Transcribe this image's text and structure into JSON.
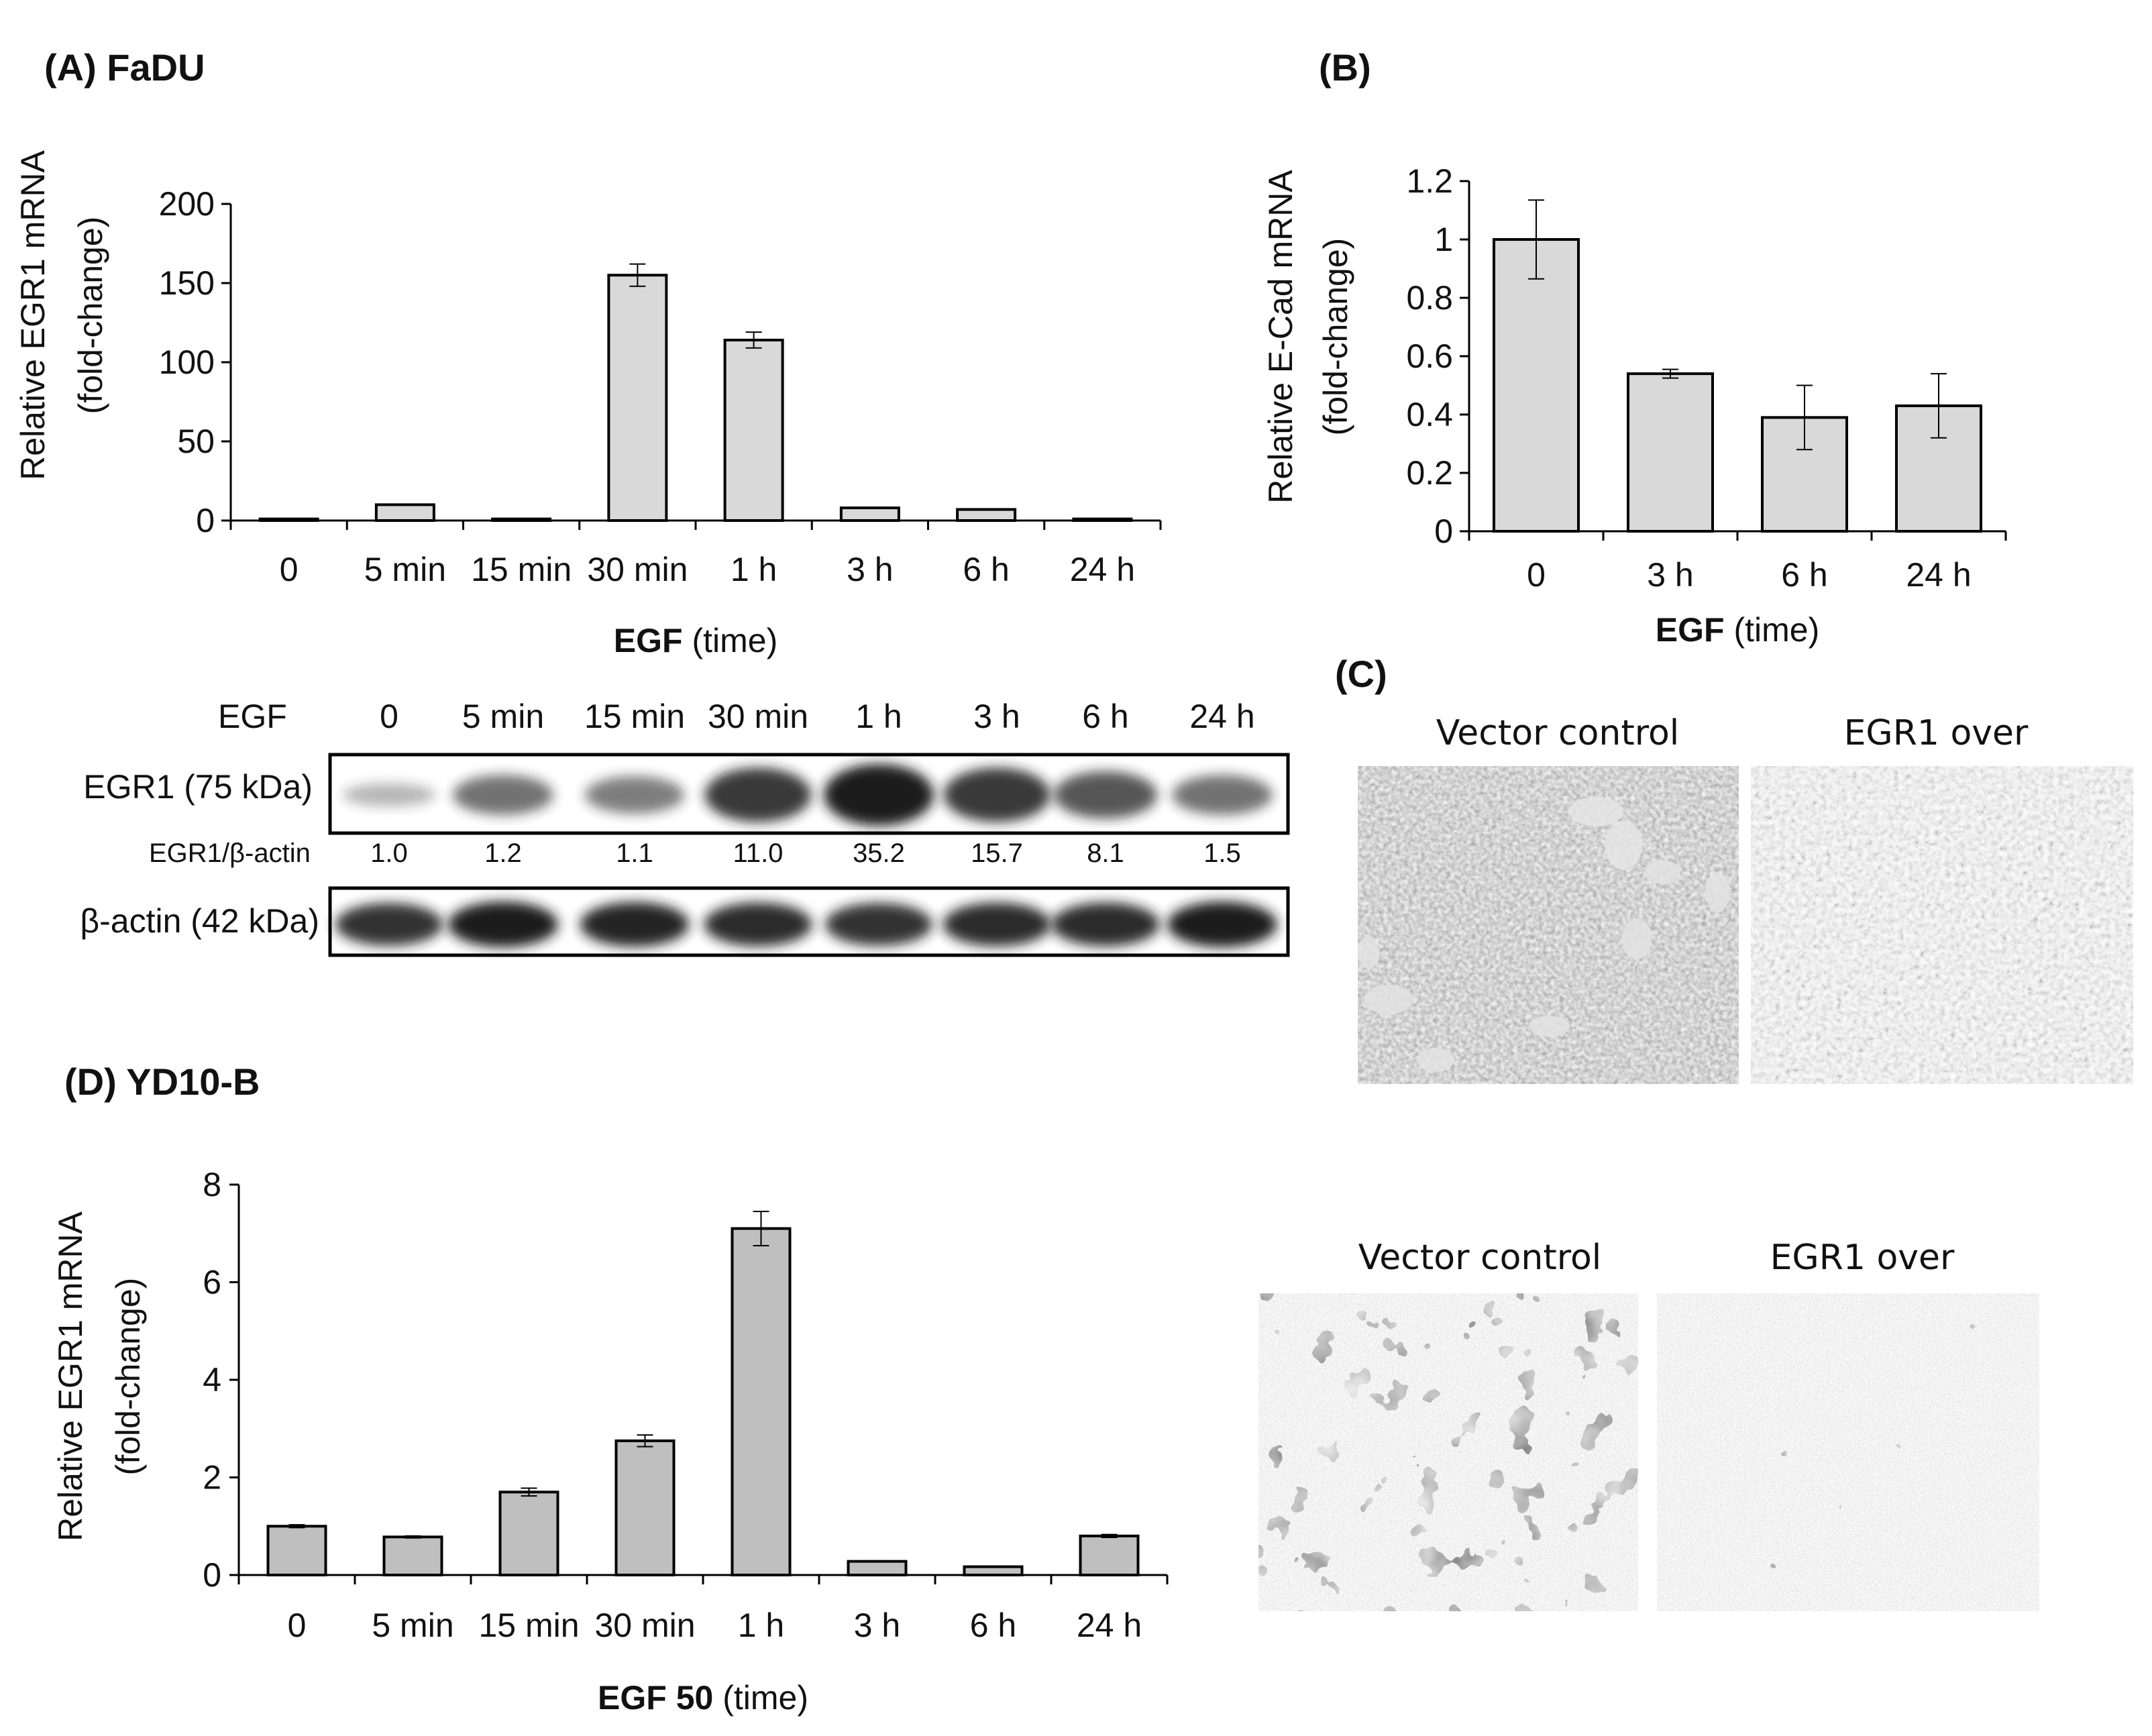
{
  "colors": {
    "bar_fill_light": "#d9d9d9",
    "bar_fill_mid": "#bfbfbf",
    "bar_stroke": "#000000",
    "band_dark": "#1a1a1a"
  },
  "panel_a": {
    "label": "(A) FaDU",
    "blot": {
      "treatment_label": "EGF",
      "lanes": [
        "0",
        "5 min",
        "15 min",
        "30 min",
        "1 h",
        "3 h",
        "6 h",
        "24 h"
      ],
      "egr1_row_label": "EGR1 (75 kDa)",
      "ratio_label": "EGR1/β-actin",
      "ratios": [
        "1.0",
        "1.2",
        "1.1",
        "11.0",
        "35.2",
        "15.7",
        "8.1",
        "1.5"
      ],
      "actin_row_label": "β-actin (42 kDa)",
      "egr1_band_intensity": [
        0.2,
        0.55,
        0.5,
        0.85,
        1.0,
        0.85,
        0.7,
        0.55
      ],
      "actin_band_intensity": [
        0.85,
        1.0,
        0.95,
        0.9,
        0.85,
        0.9,
        0.9,
        1.0
      ]
    }
  },
  "panel_b": {
    "label": "(B)"
  },
  "panel_c": {
    "label": "(C)",
    "top": {
      "left_caption": "Vector control",
      "right_caption": "EGR1 over"
    },
    "bottom": {
      "left_caption": "Vector control",
      "right_caption": "EGR1 over"
    }
  },
  "panel_d": {
    "label": "(D) YD10-B"
  },
  "chart_data": [
    {
      "type": "bar",
      "panel": "A",
      "categories": [
        "0",
        "5 min",
        "15 min",
        "30 min",
        "1 h",
        "3 h",
        "6 h",
        "24 h"
      ],
      "values": [
        1,
        10,
        1,
        155,
        114,
        8,
        7,
        1
      ],
      "errors": [
        0,
        0,
        0,
        7,
        5,
        0,
        0,
        0
      ],
      "ylabel": "Relative EGR1 mRNA (fold-change)",
      "ylabel_lines": [
        "Relative EGR1 mRNA",
        "(fold-change)"
      ],
      "xlabel": "EGF (time)",
      "xlabel_bold": "EGF",
      "xlabel_rest": " (time)",
      "ylim": [
        0,
        200
      ],
      "yticks": [
        "0",
        "50",
        "100",
        "150",
        "200"
      ]
    },
    {
      "type": "bar",
      "panel": "B",
      "categories": [
        "0",
        "3 h",
        "6 h",
        "24 h"
      ],
      "values": [
        1.0,
        0.54,
        0.39,
        0.43
      ],
      "errors": [
        0.135,
        0.015,
        0.11,
        0.11
      ],
      "ylabel": "Relative E-Cad mRNA (fold-change)",
      "ylabel_lines": [
        "Relative E-Cad mRNA",
        "(fold-change)"
      ],
      "xlabel": "EGF (time)",
      "xlabel_bold": "EGF",
      "xlabel_rest": " (time)",
      "ylim": [
        0,
        1.2
      ],
      "yticks": [
        "0",
        "0.2",
        "0.4",
        "0.6",
        "0.8",
        "1",
        "1.2"
      ]
    },
    {
      "type": "bar",
      "panel": "D",
      "categories": [
        "0",
        "5 min",
        "15 min",
        "30 min",
        "1 h",
        "3 h",
        "6 h",
        "24 h"
      ],
      "values": [
        1.0,
        0.78,
        1.7,
        2.75,
        7.1,
        0.28,
        0.17,
        0.8
      ],
      "errors": [
        0.03,
        0.02,
        0.08,
        0.12,
        0.35,
        0.01,
        0.01,
        0.03
      ],
      "ylabel": "Relative EGR1 mRNA (fold-change)",
      "ylabel_lines": [
        "Relative EGR1 mRNA",
        "(fold-change)"
      ],
      "xlabel": "EGF 50 (time)",
      "xlabel_bold": "EGF 50",
      "xlabel_rest": " (time)",
      "ylim": [
        0,
        8
      ],
      "yticks": [
        "0",
        "2",
        "4",
        "6",
        "8"
      ]
    }
  ]
}
